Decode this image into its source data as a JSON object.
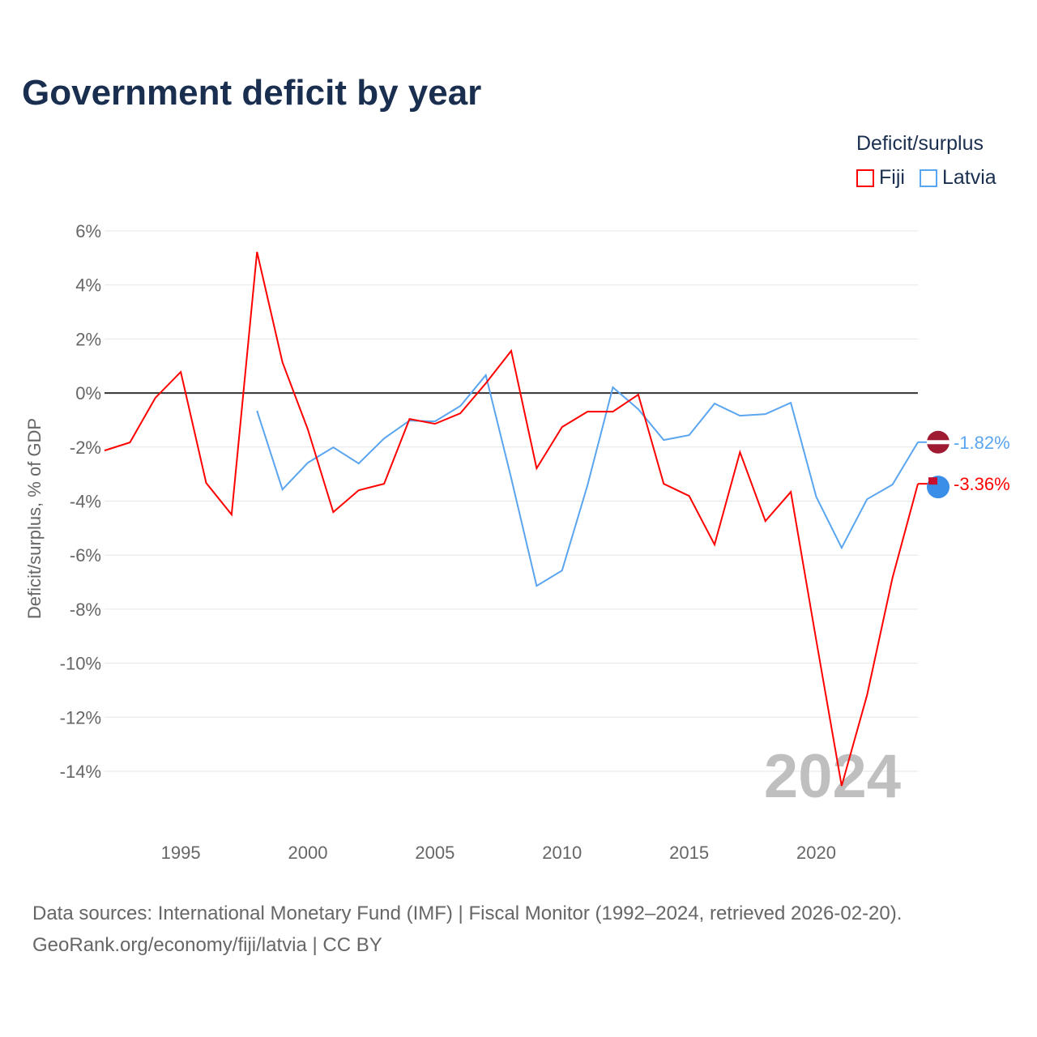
{
  "title": "Government deficit by year",
  "legend": {
    "title": "Deficit/surplus",
    "items": [
      {
        "label": "Fiji",
        "color": "#ff0000"
      },
      {
        "label": "Latvia",
        "color": "#5aa5ef"
      }
    ]
  },
  "footer": {
    "line1": "Data sources: International Monetary Fund (IMF) | Fiscal Monitor (1992–2024, retrieved 2026-02-20).",
    "line2": "GeoRank.org/economy/fiji/latvia | CC BY"
  },
  "chart_data": {
    "type": "line",
    "title": "Government deficit by year",
    "xlabel": "",
    "ylabel": "Deficit/surplus, % of GDP",
    "xlim": [
      1992,
      2024
    ],
    "ylim": [
      -14,
      6
    ],
    "yticks": [
      6,
      4,
      2,
      0,
      -2,
      -4,
      -6,
      -8,
      -10,
      -12,
      -14
    ],
    "ytick_labels": [
      "6%",
      "4%",
      "2%",
      "0%",
      "-2%",
      "-4%",
      "-6%",
      "-8%",
      "-10%",
      "-12%",
      "-14%"
    ],
    "xticks": [
      1995,
      2000,
      2005,
      2010,
      2015,
      2020
    ],
    "xtick_labels": [
      "1995",
      "2000",
      "2005",
      "2010",
      "2015",
      "2020"
    ],
    "watermark_year": "2024",
    "series": [
      {
        "name": "Fiji",
        "color": "#ff0000",
        "end_label": "-3.36%",
        "x": [
          1992,
          1993,
          1994,
          1995,
          1996,
          1997,
          1998,
          1999,
          2000,
          2001,
          2002,
          2003,
          2004,
          2005,
          2006,
          2007,
          2008,
          2009,
          2010,
          2011,
          2012,
          2013,
          2014,
          2015,
          2016,
          2017,
          2018,
          2019,
          2020,
          2021,
          2022,
          2023,
          2024
        ],
        "values": [
          -2.13,
          -1.83,
          -0.18,
          0.78,
          -3.33,
          -4.5,
          5.22,
          1.14,
          -1.35,
          -4.41,
          -3.6,
          -3.36,
          -0.96,
          -1.14,
          -0.75,
          0.36,
          1.56,
          -2.79,
          -1.26,
          -0.69,
          -0.69,
          -0.06,
          -3.36,
          -3.81,
          -5.61,
          -2.19,
          -4.74,
          -3.66,
          -9.15,
          -14.54,
          -11.18,
          -6.84,
          -3.36
        ]
      },
      {
        "name": "Latvia",
        "color": "#5aa5ef",
        "end_label": "-1.82%",
        "x": [
          1998,
          1999,
          2000,
          2001,
          2002,
          2003,
          2004,
          2005,
          2006,
          2007,
          2008,
          2009,
          2010,
          2011,
          2012,
          2013,
          2014,
          2015,
          2016,
          2017,
          2018,
          2019,
          2020,
          2021,
          2022,
          2023,
          2024
        ],
        "values": [
          -0.66,
          -3.57,
          -2.58,
          -2.01,
          -2.61,
          -1.68,
          -1.02,
          -1.05,
          -0.48,
          0.66,
          -3.15,
          -7.14,
          -6.57,
          -3.42,
          0.21,
          -0.6,
          -1.74,
          -1.56,
          -0.39,
          -0.84,
          -0.78,
          -0.36,
          -3.84,
          -5.73,
          -3.93,
          -3.39,
          -1.82
        ]
      }
    ]
  }
}
